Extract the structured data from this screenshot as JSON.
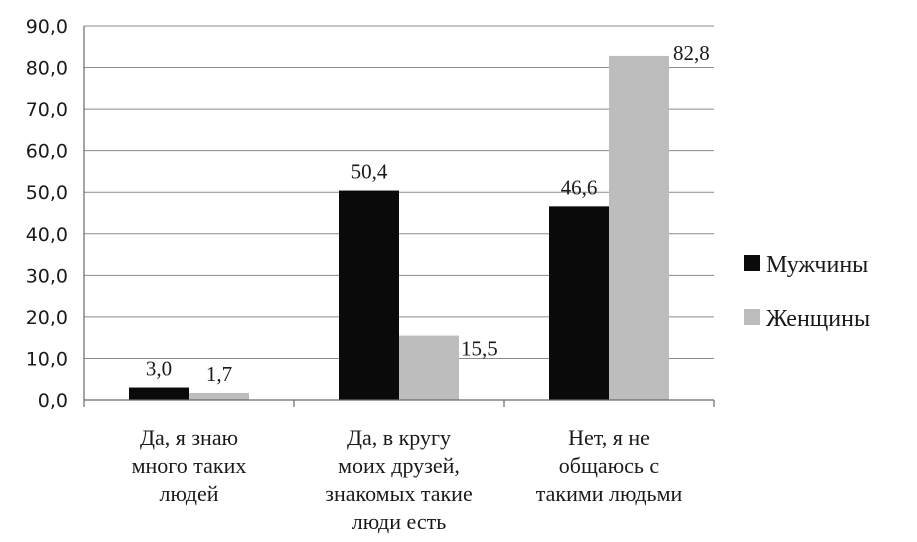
{
  "chart_data": {
    "type": "bar",
    "categories": [
      [
        "Да, я знаю",
        "много таких",
        "людей"
      ],
      [
        "Да, в кругу",
        "моих друзей,",
        "знакомых такие",
        "люди есть"
      ],
      [
        "Нет, я не",
        "общаюсь с",
        "такими людьми"
      ]
    ],
    "series": [
      {
        "name": "Мужчины",
        "color": "#0a0a0a",
        "values": [
          3.0,
          50.4,
          46.6
        ],
        "labels": [
          "3,0",
          "50,4",
          "46,6"
        ]
      },
      {
        "name": "Женщины",
        "color": "#bdbdbd",
        "values": [
          1.7,
          15.5,
          82.8
        ],
        "labels": [
          "1,7",
          "15,5",
          "82,8"
        ]
      }
    ],
    "ylim": [
      0,
      90
    ],
    "yticks": [
      "0,0",
      "10,0",
      "20,0",
      "30,0",
      "40,0",
      "50,0",
      "60,0",
      "70,0",
      "80,0",
      "90,0"
    ],
    "grid": true,
    "legend_position": "right"
  }
}
